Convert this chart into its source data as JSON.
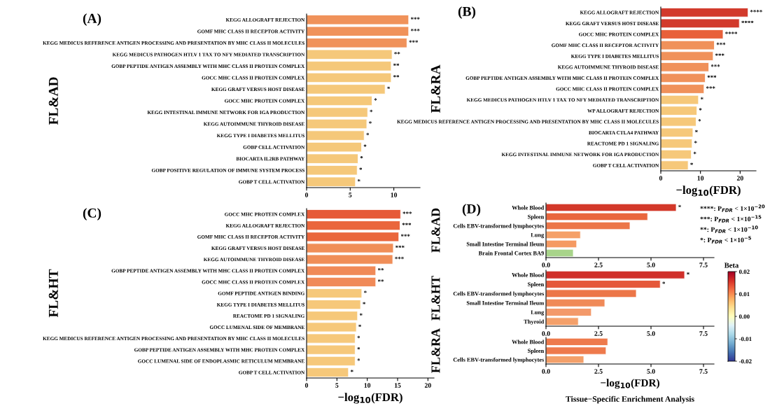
{
  "chart_data": [
    {
      "type": "bar",
      "orientation": "horizontal",
      "title": "(A)",
      "ylabel": "FL&AD",
      "categories": [
        "KEGG ALLOGRAFT REJECTION",
        "GOMF MHC CLASS II RECEPTOR ACTIVITY",
        "KEGG MEDICUS REFERENCE ANTIGEN PROCESSING AND PRESENTATION BY MHC CLASS II MOLECULES",
        "KEGG MEDICUS PATHOGEN HTLV 1 TAX TO NFY MEDIATED TRANSCRIPTION",
        "GOBP PEPTIDE ANTIGEN ASSEMBLY WITH MHC CLASS II PROTEIN COMPLEX",
        "GOCC MHC CLASS II PROTEIN COMPLEX",
        "KEGG GRAFT VERSUS HOST DISEASE",
        "GOCC MHC PROTEIN COMPLEX",
        "KEGG INTESTINAL IMMUNE NETWORK FOR IGA PRODUCTION",
        "KEGG AUTOIMMUNE THYROID DISEASE",
        "KEGG TYPE I DIABETES MELLITUS",
        "GOBP CELL ACTIVATION",
        "BIOCARTA IL2RB PATHWAY",
        "GOBP POSITIVE REGULATION OF IMMUNE SYSTEM PROCESS",
        "GOBP T CELL ACTIVATION"
      ],
      "values": [
        11.7,
        11.7,
        11.5,
        9.8,
        9.7,
        9.7,
        9.0,
        7.5,
        7.0,
        6.9,
        6.6,
        6.3,
        5.9,
        5.8,
        5.6
      ],
      "colors": [
        "#f0925a",
        "#f0925a",
        "#f0925a",
        "#f5c87a",
        "#f5c87a",
        "#f5c87a",
        "#f5c87a",
        "#f5c87a",
        "#f5c87a",
        "#f5c87a",
        "#f5c87a",
        "#f5c87a",
        "#f5c87a",
        "#f5c87a",
        "#f5c87a"
      ],
      "value_labels": [
        "***",
        "***",
        "***",
        "**",
        "**",
        "**",
        "*",
        "*",
        "*",
        "*",
        "*",
        "*",
        "*",
        "*",
        "*"
      ],
      "xlim": [
        0,
        13
      ],
      "xticks": [
        0,
        5,
        10
      ]
    },
    {
      "type": "bar",
      "orientation": "horizontal",
      "title": "(B)",
      "ylabel": "FL&RA",
      "xlabel": "−log$_{10}$(FDR)",
      "categories": [
        "KEGG ALLOGRAFT REJECTION",
        "KEGG GRAFT VERSUS HOST DISEASE",
        "GOCC MHC PROTEIN COMPLEX",
        "GOMF MHC CLASS II RECEPTOR ACTIVITY",
        "KEGG TYPE I DIABETES MELLITUS",
        "KEGG AUTOIMMUNE THYROID DISEASE",
        "GOBP PEPTIDE ANTIGEN ASSEMBLY WITH MHC CLASS II PROTEIN COMPLEX",
        "GOCC MHC CLASS II PROTEIN COMPLEX",
        "KEGG MEDICUS PATHOGEN HTLV 1 TAX TO NFY MEDIATED TRANSCRIPTION",
        "WP ALLOGRAFT REJECTION",
        "KEGG MEDICUS REFERENCE ANTIGEN PROCESSING AND PRESENTATION BY MHC CLASS II MOLECULES",
        "BIOCARTA CTLA4 PATHWAY",
        "REACTOME PD 1 SIGNALING",
        "KEGG INTESTINAL IMMUNE NETWORK FOR IGA PRODUCTION",
        "GOBP T CELL ACTIVATION"
      ],
      "values": [
        22.0,
        19.8,
        15.7,
        13.5,
        13.2,
        12.1,
        11.2,
        10.9,
        9.5,
        9.1,
        8.9,
        8.1,
        7.9,
        7.7,
        6.9
      ],
      "colors": [
        "#d23a2c",
        "#d23a2c",
        "#e8603a",
        "#f0915a",
        "#f0915a",
        "#f0915a",
        "#f0915a",
        "#f0915a",
        "#f6c87a",
        "#f6c87a",
        "#f6c87a",
        "#f6c87a",
        "#f6c87a",
        "#f6c87a",
        "#f6c87a"
      ],
      "value_labels": [
        "****",
        "****",
        "****",
        "***",
        "***",
        "***",
        "***",
        "***",
        "*",
        "*",
        "*",
        "*",
        "*",
        "*",
        "*"
      ],
      "xlim": [
        0,
        24
      ],
      "xticks": [
        0,
        10,
        20
      ]
    },
    {
      "type": "bar",
      "orientation": "horizontal",
      "title": "(C)",
      "ylabel": "FL&HT",
      "xlabel": "−log$_{10}$(FDR)",
      "categories": [
        "GOCC MHC PROTEIN COMPLEX",
        "KEGG ALLOGRAFT REJECTION",
        "GOMF MHC CLASS II RECEPTOR ACTIVITY",
        "KEGG GRAFT VERSUS HOST DISEASE",
        "KEGG AUTOIMMUNE THYROID DISEASE",
        "GOBP PEPTIDE ANTIGEN ASSEMBLY WITH MHC CLASS II PROTEIN COMPLEX",
        "GOCC MHC CLASS II PROTEIN COMPLEX",
        "GOMF PEPTIDE ANTIGEN BINDING",
        "KEGG TYPE I DIABETES MELLITUS",
        "REACTOME PD 1 SIGNALING",
        "GOCC LUMENAL SIDE OF MEMBRANE",
        "KEGG MEDICUS REFERENCE ANTIGEN PROCESSING AND PRESENTATION BY MHC CLASS II MOLECULES",
        "GOBP PEPTIDE ANTIGEN ASSEMBLY WITH MHC PROTEIN COMPLEX",
        "GOCC LUMENAL SIDE OF ENDOPLASMIC RETICULUM MEMBRANE",
        "GOBP T CELL ACTIVATION"
      ],
      "values": [
        15.5,
        15.4,
        15.2,
        14.3,
        14.2,
        11.4,
        11.4,
        9.1,
        8.9,
        8.4,
        8.2,
        8.0,
        8.0,
        8.0,
        6.9
      ],
      "colors": [
        "#e65a38",
        "#ea663c",
        "#ea663c",
        "#f08e58",
        "#f08e58",
        "#f08a58",
        "#f08a58",
        "#f6c87a",
        "#f6c87a",
        "#f6c87a",
        "#f6c87a",
        "#f6c87a",
        "#f6c87a",
        "#f6c87a",
        "#f6c87a"
      ],
      "value_labels": [
        "***",
        "***",
        "***",
        "***",
        "***",
        "**",
        "**",
        "*",
        "*",
        "*",
        "*",
        "*",
        "*",
        "*",
        "*"
      ],
      "xlim": [
        0,
        21
      ],
      "xticks": [
        0,
        5,
        10,
        15,
        20
      ]
    },
    {
      "type": "bar",
      "orientation": "horizontal",
      "title": "(D)",
      "ylabel": "FL&AD",
      "categories": [
        "Whole Blood",
        "Spleen",
        "Cells EBV-transformed lymphocytes",
        "Lung",
        "Small Intestine Terminal Ileum",
        "Brain Frontal Cortex BA9"
      ],
      "values": [
        6.2,
        4.84,
        4.0,
        1.64,
        1.46,
        1.3
      ],
      "colors": [
        "#d3382a",
        "#e9663e",
        "#ec7648",
        "#f5a068",
        "#f59a62",
        "#a8d48a"
      ],
      "value_labels": [
        "*",
        null,
        null,
        null,
        null,
        null
      ],
      "annotations": [
        "****: P$_{FDR}$ < 1×10$^{−20}$",
        "***: P$_{FDR}$ < 1×10$^{−15}$",
        "**: P$_{FDR}$ < 1×10$^{−10}$",
        "*: P$_{FDR}$ < 1×10$^{−5}$"
      ],
      "xlim": [
        0,
        8
      ],
      "xticks": [
        {
          "value": 0,
          "label": "0.0"
        },
        {
          "value": 2.5,
          "label": "2.5"
        },
        {
          "value": 5,
          "label": "5.0"
        },
        {
          "value": 7.5,
          "label": "7.5"
        }
      ]
    },
    {
      "type": "bar",
      "orientation": "horizontal",
      "ylabel": "FL&HT",
      "categories": [
        "Whole Blood",
        "Spleen",
        "Cells EBV-transformed lymphocytes",
        "Small Intestine Terminal Ileum",
        "Lung",
        "Thyroid"
      ],
      "values": [
        6.6,
        5.44,
        4.3,
        2.8,
        2.16,
        1.54
      ],
      "colors": [
        "#d0302a",
        "#e5583a",
        "#ec7648",
        "#f08a58",
        "#f3996a",
        "#f4a06a"
      ],
      "value_labels": [
        "*",
        "*",
        null,
        null,
        null,
        null
      ],
      "clabel": "Beta",
      "clim": [
        -0.02,
        0.02
      ],
      "cticks": [
        {
          "value": 0.02,
          "label": "0.02"
        },
        {
          "value": 0.01,
          "label": "0.01"
        },
        {
          "value": 0,
          "label": "0.00"
        },
        {
          "value": -0.01,
          "label": "-0.01"
        },
        {
          "value": -0.02,
          "label": "-0.02"
        }
      ],
      "xlim": [
        0,
        8
      ],
      "xticks": [
        {
          "value": 0,
          "label": "0.0"
        },
        {
          "value": 2.5,
          "label": "2.5"
        },
        {
          "value": 5,
          "label": "5.0"
        },
        {
          "value": 7.5,
          "label": "7.5"
        }
      ]
    },
    {
      "type": "bar",
      "orientation": "horizontal",
      "ylabel": "FL&RA",
      "xlabel": "−log$_{10}$(FDR)",
      "categories": [
        "Whole Blood",
        "Spleen",
        "Cells EBV-transformed lymphocytes"
      ],
      "values": [
        2.94,
        2.86,
        1.8
      ],
      "colors": [
        "#ee7a4c",
        "#ee7a4c",
        "#f3a06a"
      ],
      "annotations": [
        "Tissue−Specific Enrichment Analysis"
      ],
      "xlim": [
        0,
        8
      ],
      "xticks": [
        {
          "value": 0,
          "label": "0.0"
        },
        {
          "value": 2.5,
          "label": "2.5"
        },
        {
          "value": 5,
          "label": "5.0"
        },
        {
          "value": 7.5,
          "label": "7.5"
        }
      ]
    }
  ]
}
